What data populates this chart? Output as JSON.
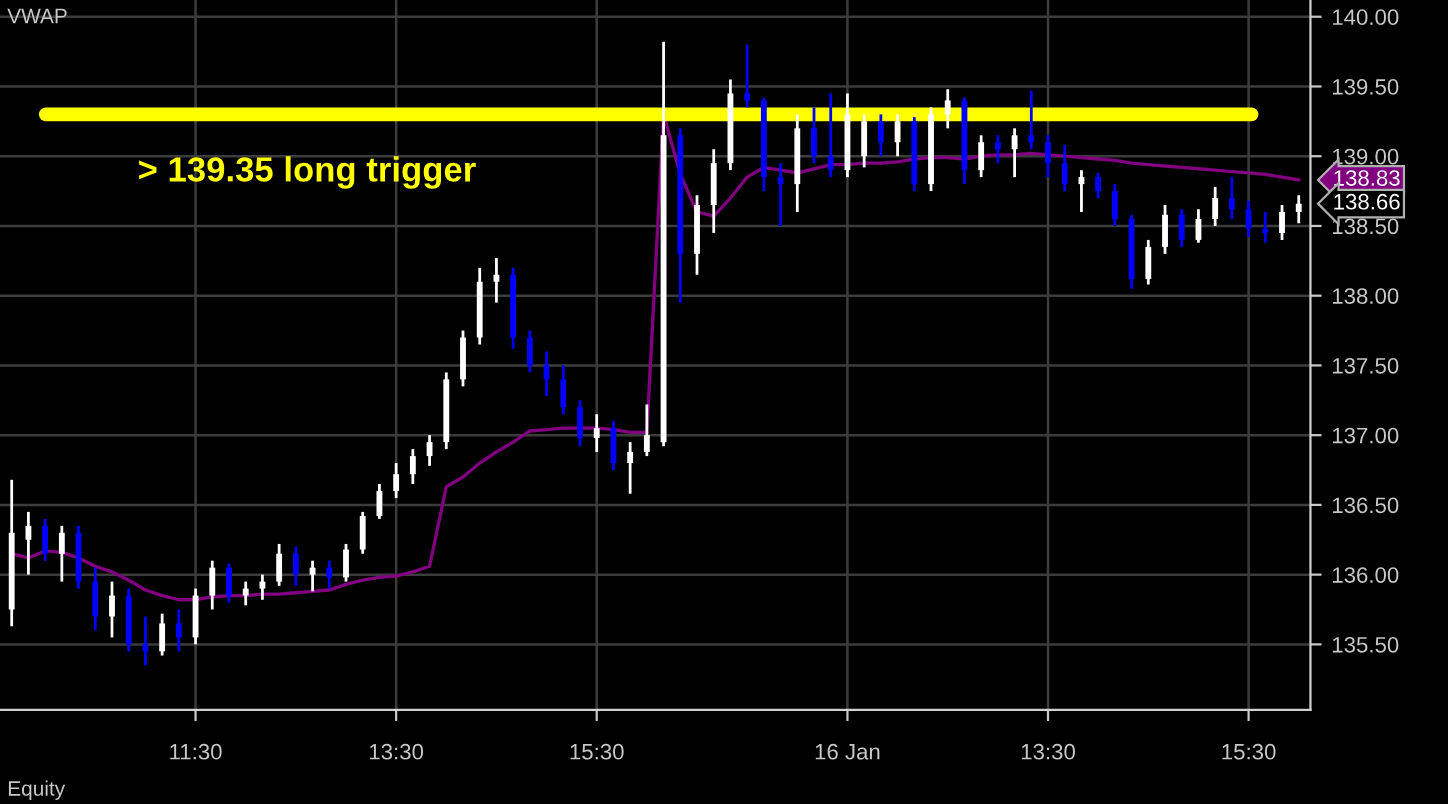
{
  "chart_data": {
    "type": "candlestick",
    "categories": [
      null,
      null,
      null,
      null,
      null,
      null,
      null,
      null,
      null,
      null,
      null,
      "11:30",
      null,
      null,
      null,
      null,
      null,
      null,
      null,
      null,
      null,
      null,
      null,
      "13:30",
      null,
      null,
      null,
      null,
      null,
      null,
      null,
      null,
      null,
      null,
      null,
      "15:30",
      null,
      null,
      null,
      null,
      null,
      null,
      null,
      null,
      null,
      null,
      null,
      null,
      null,
      null,
      "16 Jan",
      null,
      null,
      null,
      null,
      null,
      null,
      null,
      null,
      null,
      null,
      null,
      "13:30",
      null,
      null,
      null,
      null,
      null,
      null,
      null,
      null,
      null,
      null,
      null,
      "15:30",
      null,
      null,
      null
    ],
    "ohlc": [
      [
        135.75,
        136.68,
        135.63,
        136.3
      ],
      [
        136.25,
        136.45,
        136.0,
        136.35
      ],
      [
        136.35,
        136.4,
        136.1,
        136.15
      ],
      [
        136.15,
        136.35,
        135.95,
        136.3
      ],
      [
        136.3,
        136.35,
        135.9,
        135.95
      ],
      [
        135.95,
        136.05,
        135.6,
        135.7
      ],
      [
        135.7,
        135.95,
        135.55,
        135.85
      ],
      [
        135.85,
        135.9,
        135.45,
        135.5
      ],
      [
        135.5,
        135.7,
        135.35,
        135.45
      ],
      [
        135.45,
        135.72,
        135.42,
        135.65
      ],
      [
        135.65,
        135.75,
        135.45,
        135.55
      ],
      [
        135.55,
        135.9,
        135.5,
        135.85
      ],
      [
        135.85,
        136.1,
        135.75,
        136.05
      ],
      [
        136.05,
        136.08,
        135.8,
        135.85
      ],
      [
        135.85,
        135.95,
        135.78,
        135.9
      ],
      [
        135.9,
        136.0,
        135.82,
        135.95
      ],
      [
        135.95,
        136.22,
        135.92,
        136.15
      ],
      [
        136.15,
        136.2,
        135.92,
        136.0
      ],
      [
        136.0,
        136.1,
        135.88,
        136.05
      ],
      [
        136.05,
        136.1,
        135.9,
        135.98
      ],
      [
        135.98,
        136.22,
        135.95,
        136.18
      ],
      [
        136.18,
        136.45,
        136.15,
        136.42
      ],
      [
        136.42,
        136.65,
        136.4,
        136.6
      ],
      [
        136.6,
        136.8,
        136.55,
        136.72
      ],
      [
        136.72,
        136.9,
        136.65,
        136.85
      ],
      [
        136.85,
        137.0,
        136.78,
        136.95
      ],
      [
        136.95,
        137.45,
        136.9,
        137.4
      ],
      [
        137.4,
        137.75,
        137.35,
        137.7
      ],
      [
        137.7,
        138.2,
        137.65,
        138.1
      ],
      [
        138.1,
        138.27,
        137.95,
        138.15
      ],
      [
        138.15,
        138.2,
        137.62,
        137.7
      ],
      [
        137.7,
        137.75,
        137.45,
        137.5
      ],
      [
        137.5,
        137.6,
        137.28,
        137.4
      ],
      [
        137.4,
        137.5,
        137.15,
        137.2
      ],
      [
        137.2,
        137.25,
        136.92,
        136.98
      ],
      [
        136.98,
        137.15,
        136.88,
        137.05
      ],
      [
        137.05,
        137.1,
        136.75,
        136.8
      ],
      [
        136.8,
        136.95,
        136.58,
        136.88
      ],
      [
        136.88,
        137.22,
        136.85,
        137.0
      ],
      [
        136.95,
        139.82,
        136.92,
        139.15
      ],
      [
        139.15,
        139.2,
        137.95,
        138.3
      ],
      [
        138.3,
        138.72,
        138.15,
        138.65
      ],
      [
        138.65,
        139.05,
        138.45,
        138.95
      ],
      [
        138.95,
        139.55,
        138.9,
        139.45
      ],
      [
        139.45,
        139.8,
        139.35,
        139.4
      ],
      [
        139.4,
        139.42,
        138.75,
        138.85
      ],
      [
        138.85,
        138.95,
        138.5,
        138.8
      ],
      [
        138.8,
        139.3,
        138.6,
        139.2
      ],
      [
        139.2,
        139.35,
        138.95,
        139.0
      ],
      [
        139.0,
        139.45,
        138.85,
        138.9
      ],
      [
        138.9,
        139.45,
        138.85,
        139.3
      ],
      [
        139.0,
        139.3,
        138.92,
        139.25
      ],
      [
        139.25,
        139.3,
        139.0,
        139.1
      ],
      [
        139.1,
        139.3,
        139.0,
        139.25
      ],
      [
        139.25,
        139.28,
        138.75,
        138.8
      ],
      [
        138.8,
        139.35,
        138.75,
        139.3
      ],
      [
        139.3,
        139.48,
        139.2,
        139.4
      ],
      [
        139.4,
        139.42,
        138.8,
        138.9
      ],
      [
        138.9,
        139.15,
        138.85,
        139.1
      ],
      [
        139.1,
        139.15,
        138.95,
        139.05
      ],
      [
        139.05,
        139.2,
        138.85,
        139.15
      ],
      [
        139.15,
        139.47,
        139.05,
        139.1
      ],
      [
        139.1,
        139.15,
        138.85,
        138.95
      ],
      [
        138.95,
        139.08,
        138.75,
        138.8
      ],
      [
        138.8,
        138.9,
        138.6,
        138.85
      ],
      [
        138.85,
        138.88,
        138.7,
        138.75
      ],
      [
        138.75,
        138.8,
        138.5,
        138.55
      ],
      [
        138.55,
        138.58,
        138.05,
        138.12
      ],
      [
        138.12,
        138.4,
        138.08,
        138.35
      ],
      [
        138.35,
        138.65,
        138.3,
        138.58
      ],
      [
        138.58,
        138.62,
        138.35,
        138.4
      ],
      [
        138.4,
        138.62,
        138.38,
        138.55
      ],
      [
        138.55,
        138.78,
        138.5,
        138.7
      ],
      [
        138.7,
        138.85,
        138.55,
        138.62
      ],
      [
        138.62,
        138.68,
        138.42,
        138.48
      ],
      [
        138.48,
        138.6,
        138.38,
        138.45
      ],
      [
        138.45,
        138.65,
        138.4,
        138.6
      ],
      [
        138.6,
        138.72,
        138.52,
        138.66
      ]
    ],
    "colors": [
      "#ffffff",
      "#ffffff",
      "#0000ff",
      "#ffffff",
      "#0000ff",
      "#0000ff",
      "#ffffff",
      "#0000ff",
      "#0000ff",
      "#ffffff",
      "#0000ff",
      "#ffffff",
      "#ffffff",
      "#0000ff",
      "#ffffff",
      "#ffffff",
      "#ffffff",
      "#0000ff",
      "#ffffff",
      "#0000ff",
      "#ffffff",
      "#ffffff",
      "#ffffff",
      "#ffffff",
      "#ffffff",
      "#ffffff",
      "#ffffff",
      "#ffffff",
      "#ffffff",
      "#ffffff",
      "#0000ff",
      "#0000ff",
      "#0000ff",
      "#0000ff",
      "#0000ff",
      "#ffffff",
      "#0000ff",
      "#ffffff",
      "#ffffff",
      "#ffffff",
      "#0000ff",
      "#ffffff",
      "#ffffff",
      "#ffffff",
      "#0000ff",
      "#0000ff",
      "#0000ff",
      "#ffffff",
      "#0000ff",
      "#0000ff",
      "#ffffff",
      "#ffffff",
      "#0000ff",
      "#ffffff",
      "#0000ff",
      "#ffffff",
      "#ffffff",
      "#0000ff",
      "#ffffff",
      "#0000ff",
      "#ffffff",
      "#0000ff",
      "#0000ff",
      "#0000ff",
      "#ffffff",
      "#0000ff",
      "#0000ff",
      "#0000ff",
      "#ffffff",
      "#ffffff",
      "#0000ff",
      "#ffffff",
      "#ffffff",
      "#0000ff",
      "#0000ff",
      "#0000ff",
      "#ffffff",
      "#ffffff"
    ],
    "series": [
      {
        "type": "line",
        "color": "#800080",
        "values": [
          136.15,
          136.12,
          136.17,
          136.16,
          136.12,
          136.06,
          136.02,
          135.96,
          135.89,
          135.85,
          135.82,
          135.82,
          135.84,
          135.85,
          135.85,
          135.86,
          135.86,
          135.87,
          135.88,
          135.89,
          135.93,
          135.96,
          135.98,
          135.99,
          136.02,
          136.06,
          136.63,
          136.7,
          136.8,
          136.88,
          136.95,
          137.03,
          137.04,
          137.05,
          137.05,
          137.05,
          137.04,
          137.02,
          137.02,
          139.3,
          138.87,
          138.6,
          138.57,
          138.7,
          138.85,
          138.92,
          138.9,
          138.88,
          138.91,
          138.94,
          138.94,
          138.95,
          138.95,
          138.96,
          138.98,
          138.99,
          138.99,
          138.98,
          139.0,
          139.01,
          139.01,
          139.02,
          139.01,
          139.0,
          138.99,
          138.98,
          138.97,
          138.95,
          138.94,
          138.93,
          138.92,
          138.91,
          138.9,
          138.89,
          138.88,
          138.87,
          138.85,
          138.83
        ]
      }
    ],
    "ylim": [
      135.03,
      140.12
    ],
    "yticks": [
      {
        "value": 135.5,
        "label": "135.50"
      },
      {
        "value": 136,
        "label": "136.00"
      },
      {
        "value": 136.5,
        "label": "136.50"
      },
      {
        "value": 137,
        "label": "137.00"
      },
      {
        "value": 137.5,
        "label": "137.50"
      },
      {
        "value": 138,
        "label": "138.00"
      },
      {
        "value": 138.5,
        "label": "138.50"
      },
      {
        "value": 139,
        "label": "139.00"
      },
      {
        "value": 139.5,
        "label": "139.50"
      },
      {
        "value": 140,
        "label": "140.00"
      }
    ],
    "ref_lines": [
      {
        "axis": "y",
        "value": 139.3,
        "label": "> 139.35 long trigger",
        "color": "#ffff00"
      }
    ],
    "annotations": [
      "VWAP",
      "Equity",
      "138.83",
      "138.66"
    ],
    "grid": true
  }
}
